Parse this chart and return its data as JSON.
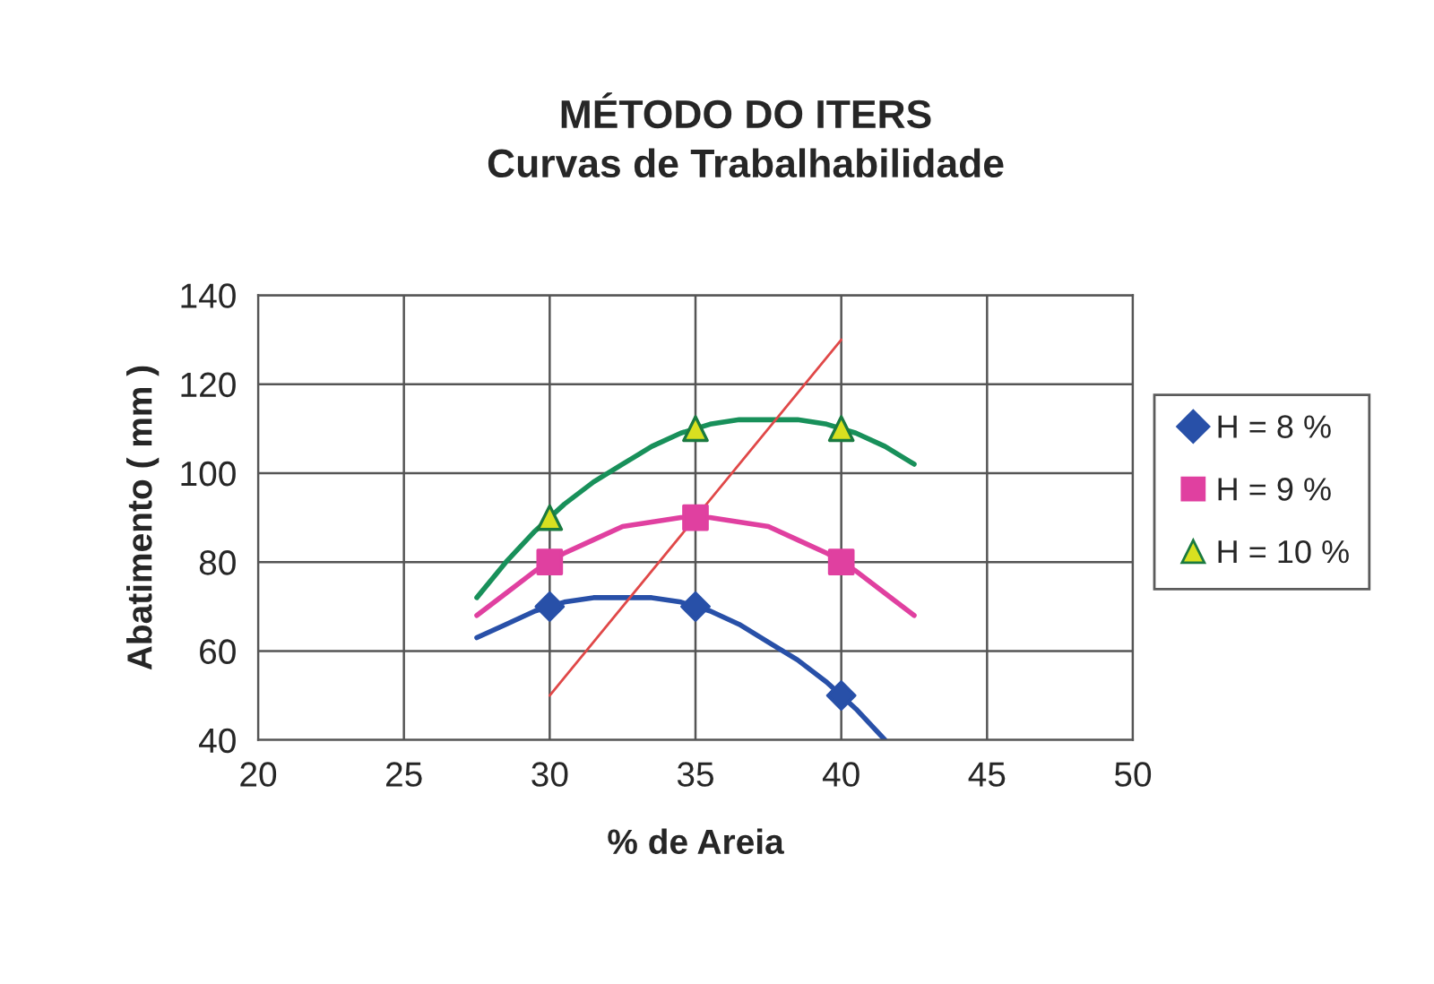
{
  "chart_data": {
    "type": "scatter",
    "title": "MÉTODO DO ITERS",
    "subtitle": "Curvas de Trabalhabilidade",
    "xlabel": "% de Areia",
    "ylabel": "Abatimento ( mm )",
    "xlim": [
      20,
      50
    ],
    "xticks": [
      20,
      25,
      30,
      35,
      40,
      45,
      50
    ],
    "ylim": [
      40,
      140
    ],
    "yticks": [
      40,
      60,
      80,
      100,
      120,
      140
    ],
    "grid": true,
    "legend": "right",
    "series": [
      {
        "type": "line",
        "color": "#2850a8",
        "marker": "none",
        "x": [
          27.5,
          28.5,
          29.5,
          30.5,
          31.5,
          32.5,
          33.5,
          34.5,
          35.5,
          36.5,
          37.5,
          38.5,
          39.5,
          40.5,
          41.5
        ],
        "values": [
          63,
          66,
          69,
          71,
          72,
          72,
          72,
          71,
          69,
          66,
          62,
          58,
          53,
          47,
          40
        ]
      },
      {
        "type": "line",
        "color": "#e040a0",
        "marker": "none",
        "x": [
          27.5,
          28.5,
          29.5,
          30.5,
          31.5,
          32.5,
          33.5,
          34.5,
          35.5,
          36.5,
          37.5,
          38.5,
          39.5,
          40.5,
          41.5,
          42.5
        ],
        "values": [
          68,
          73,
          78,
          82,
          85,
          88,
          89,
          90,
          90,
          89,
          88,
          85,
          82,
          78,
          73,
          68
        ]
      },
      {
        "type": "line",
        "color": "#18905a",
        "marker": "none",
        "x": [
          27.5,
          28.5,
          29.5,
          30.5,
          31.5,
          32.5,
          33.5,
          34.5,
          35.5,
          36.5,
          37.5,
          38.5,
          39.5,
          40.5,
          41.5,
          42.5
        ],
        "values": [
          72,
          80,
          87,
          93,
          98,
          102,
          106,
          109,
          111,
          112,
          112,
          112,
          111,
          109,
          106,
          102
        ]
      },
      {
        "type": "line",
        "color": "#e04848",
        "marker": "none",
        "x": [
          30,
          40
        ],
        "values": [
          50,
          130
        ]
      },
      {
        "name": "H = 8 %",
        "color": "#2850a8",
        "marker": "diamond",
        "x": [
          30,
          35,
          40
        ],
        "values": [
          70,
          70,
          50
        ]
      },
      {
        "name": "H = 9 %",
        "color": "#e040a0",
        "marker": "square",
        "x": [
          30,
          35,
          40
        ],
        "values": [
          80,
          90,
          80
        ]
      },
      {
        "name": "H = 10 %",
        "color": "#d8e020",
        "marker": "triangle",
        "x": [
          30,
          35,
          40
        ],
        "values": [
          90,
          110,
          110
        ]
      }
    ]
  }
}
